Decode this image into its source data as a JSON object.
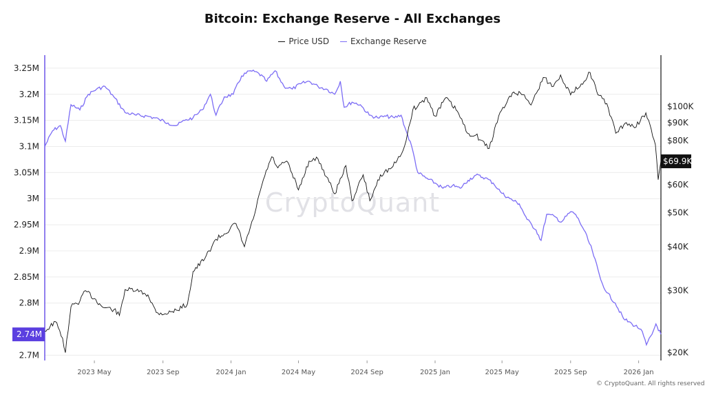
{
  "title": "Bitcoin: Exchange Reserve - All Exchanges",
  "legend": {
    "price_label": "Price USD",
    "reserve_label": "Exchange Reserve"
  },
  "watermark": "CryptoQuant",
  "copyright": "© CryptoQuant. All rights reserved",
  "colors": {
    "price": "#111111",
    "reserve": "#7b6cf5",
    "badge_left": "#5b3fe0",
    "badge_right": "#111111",
    "grid": "#ececec"
  },
  "chart_data": {
    "type": "line",
    "title": "Bitcoin: Exchange Reserve - All Exchanges",
    "x_ticks": [
      "2023 May",
      "2023 Sep",
      "2024 Jan",
      "2024 May",
      "2024 Sep",
      "2025 Jan",
      "2025 May",
      "2025 Sep",
      "2026 Jan"
    ],
    "x_range": [
      "2023-02-01",
      "2026-02-10"
    ],
    "left_axis": {
      "name": "Exchange Reserve",
      "ticks": [
        "3.25M",
        "3.2M",
        "3.15M",
        "3.1M",
        "3.05M",
        "3M",
        "2.95M",
        "2.9M",
        "2.85M",
        "2.8M",
        "2.7M"
      ],
      "tick_values": [
        3250000,
        3200000,
        3150000,
        3100000,
        3050000,
        3000000,
        2950000,
        2900000,
        2850000,
        2800000,
        2700000
      ],
      "range": [
        2690000,
        3275000
      ],
      "current_label": "2.74M",
      "current_value": 2740000
    },
    "right_axis": {
      "name": "Price USD",
      "scale": "log",
      "ticks": [
        "$100K",
        "$90K",
        "$80K",
        "$60K",
        "$50K",
        "$40K",
        "$30K",
        "$20K"
      ],
      "tick_values": [
        100000,
        90000,
        80000,
        60000,
        50000,
        40000,
        30000,
        20000
      ],
      "range": [
        19000,
        140000
      ],
      "current_label": "$69.9K",
      "current_value": 69900
    },
    "grid": true,
    "legend_position": "top-center",
    "series": [
      {
        "name": "Exchange Reserve",
        "axis": "left",
        "points": [
          [
            "2023-02-01",
            3100000
          ],
          [
            "2023-02-15",
            3130000
          ],
          [
            "2023-03-01",
            3140000
          ],
          [
            "2023-03-10",
            3110000
          ],
          [
            "2023-03-20",
            3180000
          ],
          [
            "2023-04-05",
            3170000
          ],
          [
            "2023-04-20",
            3200000
          ],
          [
            "2023-05-05",
            3210000
          ],
          [
            "2023-05-20",
            3215000
          ],
          [
            "2023-06-05",
            3195000
          ],
          [
            "2023-06-25",
            3165000
          ],
          [
            "2023-07-15",
            3160000
          ],
          [
            "2023-08-05",
            3158000
          ],
          [
            "2023-08-25",
            3152000
          ],
          [
            "2023-09-10",
            3145000
          ],
          [
            "2023-09-25",
            3140000
          ],
          [
            "2023-10-10",
            3150000
          ],
          [
            "2023-10-25",
            3155000
          ],
          [
            "2023-11-10",
            3170000
          ],
          [
            "2023-11-25",
            3200000
          ],
          [
            "2023-12-05",
            3160000
          ],
          [
            "2023-12-20",
            3195000
          ],
          [
            "2024-01-05",
            3200000
          ],
          [
            "2024-01-20",
            3235000
          ],
          [
            "2024-02-05",
            3245000
          ],
          [
            "2024-02-20",
            3240000
          ],
          [
            "2024-03-05",
            3225000
          ],
          [
            "2024-03-20",
            3245000
          ],
          [
            "2024-04-05",
            3215000
          ],
          [
            "2024-04-20",
            3210000
          ],
          [
            "2024-05-05",
            3220000
          ],
          [
            "2024-05-20",
            3225000
          ],
          [
            "2024-06-05",
            3215000
          ],
          [
            "2024-06-20",
            3210000
          ],
          [
            "2024-07-05",
            3200000
          ],
          [
            "2024-07-15",
            3225000
          ],
          [
            "2024-07-22",
            3175000
          ],
          [
            "2024-08-05",
            3185000
          ],
          [
            "2024-08-20",
            3180000
          ],
          [
            "2024-09-05",
            3160000
          ],
          [
            "2024-09-20",
            3155000
          ],
          [
            "2024-10-05",
            3158000
          ],
          [
            "2024-10-20",
            3155000
          ],
          [
            "2024-11-01",
            3160000
          ],
          [
            "2024-11-10",
            3130000
          ],
          [
            "2024-11-20",
            3100000
          ],
          [
            "2024-12-01",
            3050000
          ],
          [
            "2024-12-15",
            3040000
          ],
          [
            "2025-01-01",
            3030000
          ],
          [
            "2025-01-15",
            3020000
          ],
          [
            "2025-02-01",
            3025000
          ],
          [
            "2025-02-15",
            3020000
          ],
          [
            "2025-03-01",
            3035000
          ],
          [
            "2025-03-15",
            3045000
          ],
          [
            "2025-04-01",
            3040000
          ],
          [
            "2025-04-15",
            3030000
          ],
          [
            "2025-05-01",
            3010000
          ],
          [
            "2025-05-15",
            3000000
          ],
          [
            "2025-06-01",
            2990000
          ],
          [
            "2025-06-15",
            2960000
          ],
          [
            "2025-07-01",
            2940000
          ],
          [
            "2025-07-10",
            2920000
          ],
          [
            "2025-07-20",
            2970000
          ],
          [
            "2025-08-05",
            2965000
          ],
          [
            "2025-08-15",
            2955000
          ],
          [
            "2025-09-01",
            2975000
          ],
          [
            "2025-09-10",
            2970000
          ],
          [
            "2025-09-25",
            2940000
          ],
          [
            "2025-10-10",
            2900000
          ],
          [
            "2025-10-25",
            2845000
          ],
          [
            "2025-11-05",
            2820000
          ],
          [
            "2025-11-20",
            2800000
          ],
          [
            "2025-12-05",
            2770000
          ],
          [
            "2025-12-20",
            2760000
          ],
          [
            "2026-01-05",
            2750000
          ],
          [
            "2026-01-15",
            2720000
          ],
          [
            "2026-01-25",
            2740000
          ],
          [
            "2026-02-01",
            2760000
          ],
          [
            "2026-02-10",
            2740000
          ]
        ]
      },
      {
        "name": "Price USD",
        "axis": "right",
        "points": [
          [
            "2023-02-01",
            23000
          ],
          [
            "2023-02-20",
            24500
          ],
          [
            "2023-03-05",
            22000
          ],
          [
            "2023-03-10",
            20000
          ],
          [
            "2023-03-20",
            27000
          ],
          [
            "2023-04-05",
            28000
          ],
          [
            "2023-04-15",
            30000
          ],
          [
            "2023-05-01",
            28500
          ],
          [
            "2023-05-15",
            27000
          ],
          [
            "2023-06-05",
            26500
          ],
          [
            "2023-06-15",
            25500
          ],
          [
            "2023-06-25",
            30200
          ],
          [
            "2023-07-15",
            30000
          ],
          [
            "2023-08-05",
            29200
          ],
          [
            "2023-08-20",
            26000
          ],
          [
            "2023-09-05",
            25800
          ],
          [
            "2023-09-25",
            26400
          ],
          [
            "2023-10-15",
            27500
          ],
          [
            "2023-10-25",
            34000
          ],
          [
            "2023-11-15",
            37000
          ],
          [
            "2023-12-05",
            42000
          ],
          [
            "2023-12-20",
            43500
          ],
          [
            "2024-01-10",
            46500
          ],
          [
            "2024-01-25",
            40000
          ],
          [
            "2024-02-10",
            48000
          ],
          [
            "2024-02-28",
            62000
          ],
          [
            "2024-03-14",
            72000
          ],
          [
            "2024-03-25",
            67000
          ],
          [
            "2024-04-10",
            70000
          ],
          [
            "2024-05-01",
            58000
          ],
          [
            "2024-05-20",
            70000
          ],
          [
            "2024-06-05",
            71000
          ],
          [
            "2024-06-25",
            61000
          ],
          [
            "2024-07-05",
            56500
          ],
          [
            "2024-07-25",
            68000
          ],
          [
            "2024-08-05",
            54000
          ],
          [
            "2024-08-25",
            64000
          ],
          [
            "2024-09-06",
            54000
          ],
          [
            "2024-09-25",
            64000
          ],
          [
            "2024-10-15",
            67000
          ],
          [
            "2024-10-30",
            72000
          ],
          [
            "2024-11-10",
            80000
          ],
          [
            "2024-11-22",
            98000
          ],
          [
            "2024-12-17",
            106000
          ],
          [
            "2025-01-01",
            94000
          ],
          [
            "2025-01-20",
            106000
          ],
          [
            "2025-02-10",
            97000
          ],
          [
            "2025-02-28",
            84000
          ],
          [
            "2025-03-15",
            83000
          ],
          [
            "2025-04-08",
            76000
          ],
          [
            "2025-04-25",
            94000
          ],
          [
            "2025-05-10",
            103000
          ],
          [
            "2025-05-22",
            110000
          ],
          [
            "2025-06-10",
            108000
          ],
          [
            "2025-06-22",
            101000
          ],
          [
            "2025-07-14",
            121000
          ],
          [
            "2025-08-01",
            114000
          ],
          [
            "2025-08-14",
            123000
          ],
          [
            "2025-09-01",
            108000
          ],
          [
            "2025-09-20",
            116000
          ],
          [
            "2025-10-06",
            125000
          ],
          [
            "2025-10-20",
            108000
          ],
          [
            "2025-11-05",
            102000
          ],
          [
            "2025-11-21",
            84000
          ],
          [
            "2025-12-10",
            90000
          ],
          [
            "2025-12-25",
            87000
          ],
          [
            "2026-01-14",
            96000
          ],
          [
            "2026-01-31",
            78000
          ],
          [
            "2026-02-05",
            62000
          ],
          [
            "2026-02-10",
            69900
          ]
        ]
      }
    ]
  }
}
